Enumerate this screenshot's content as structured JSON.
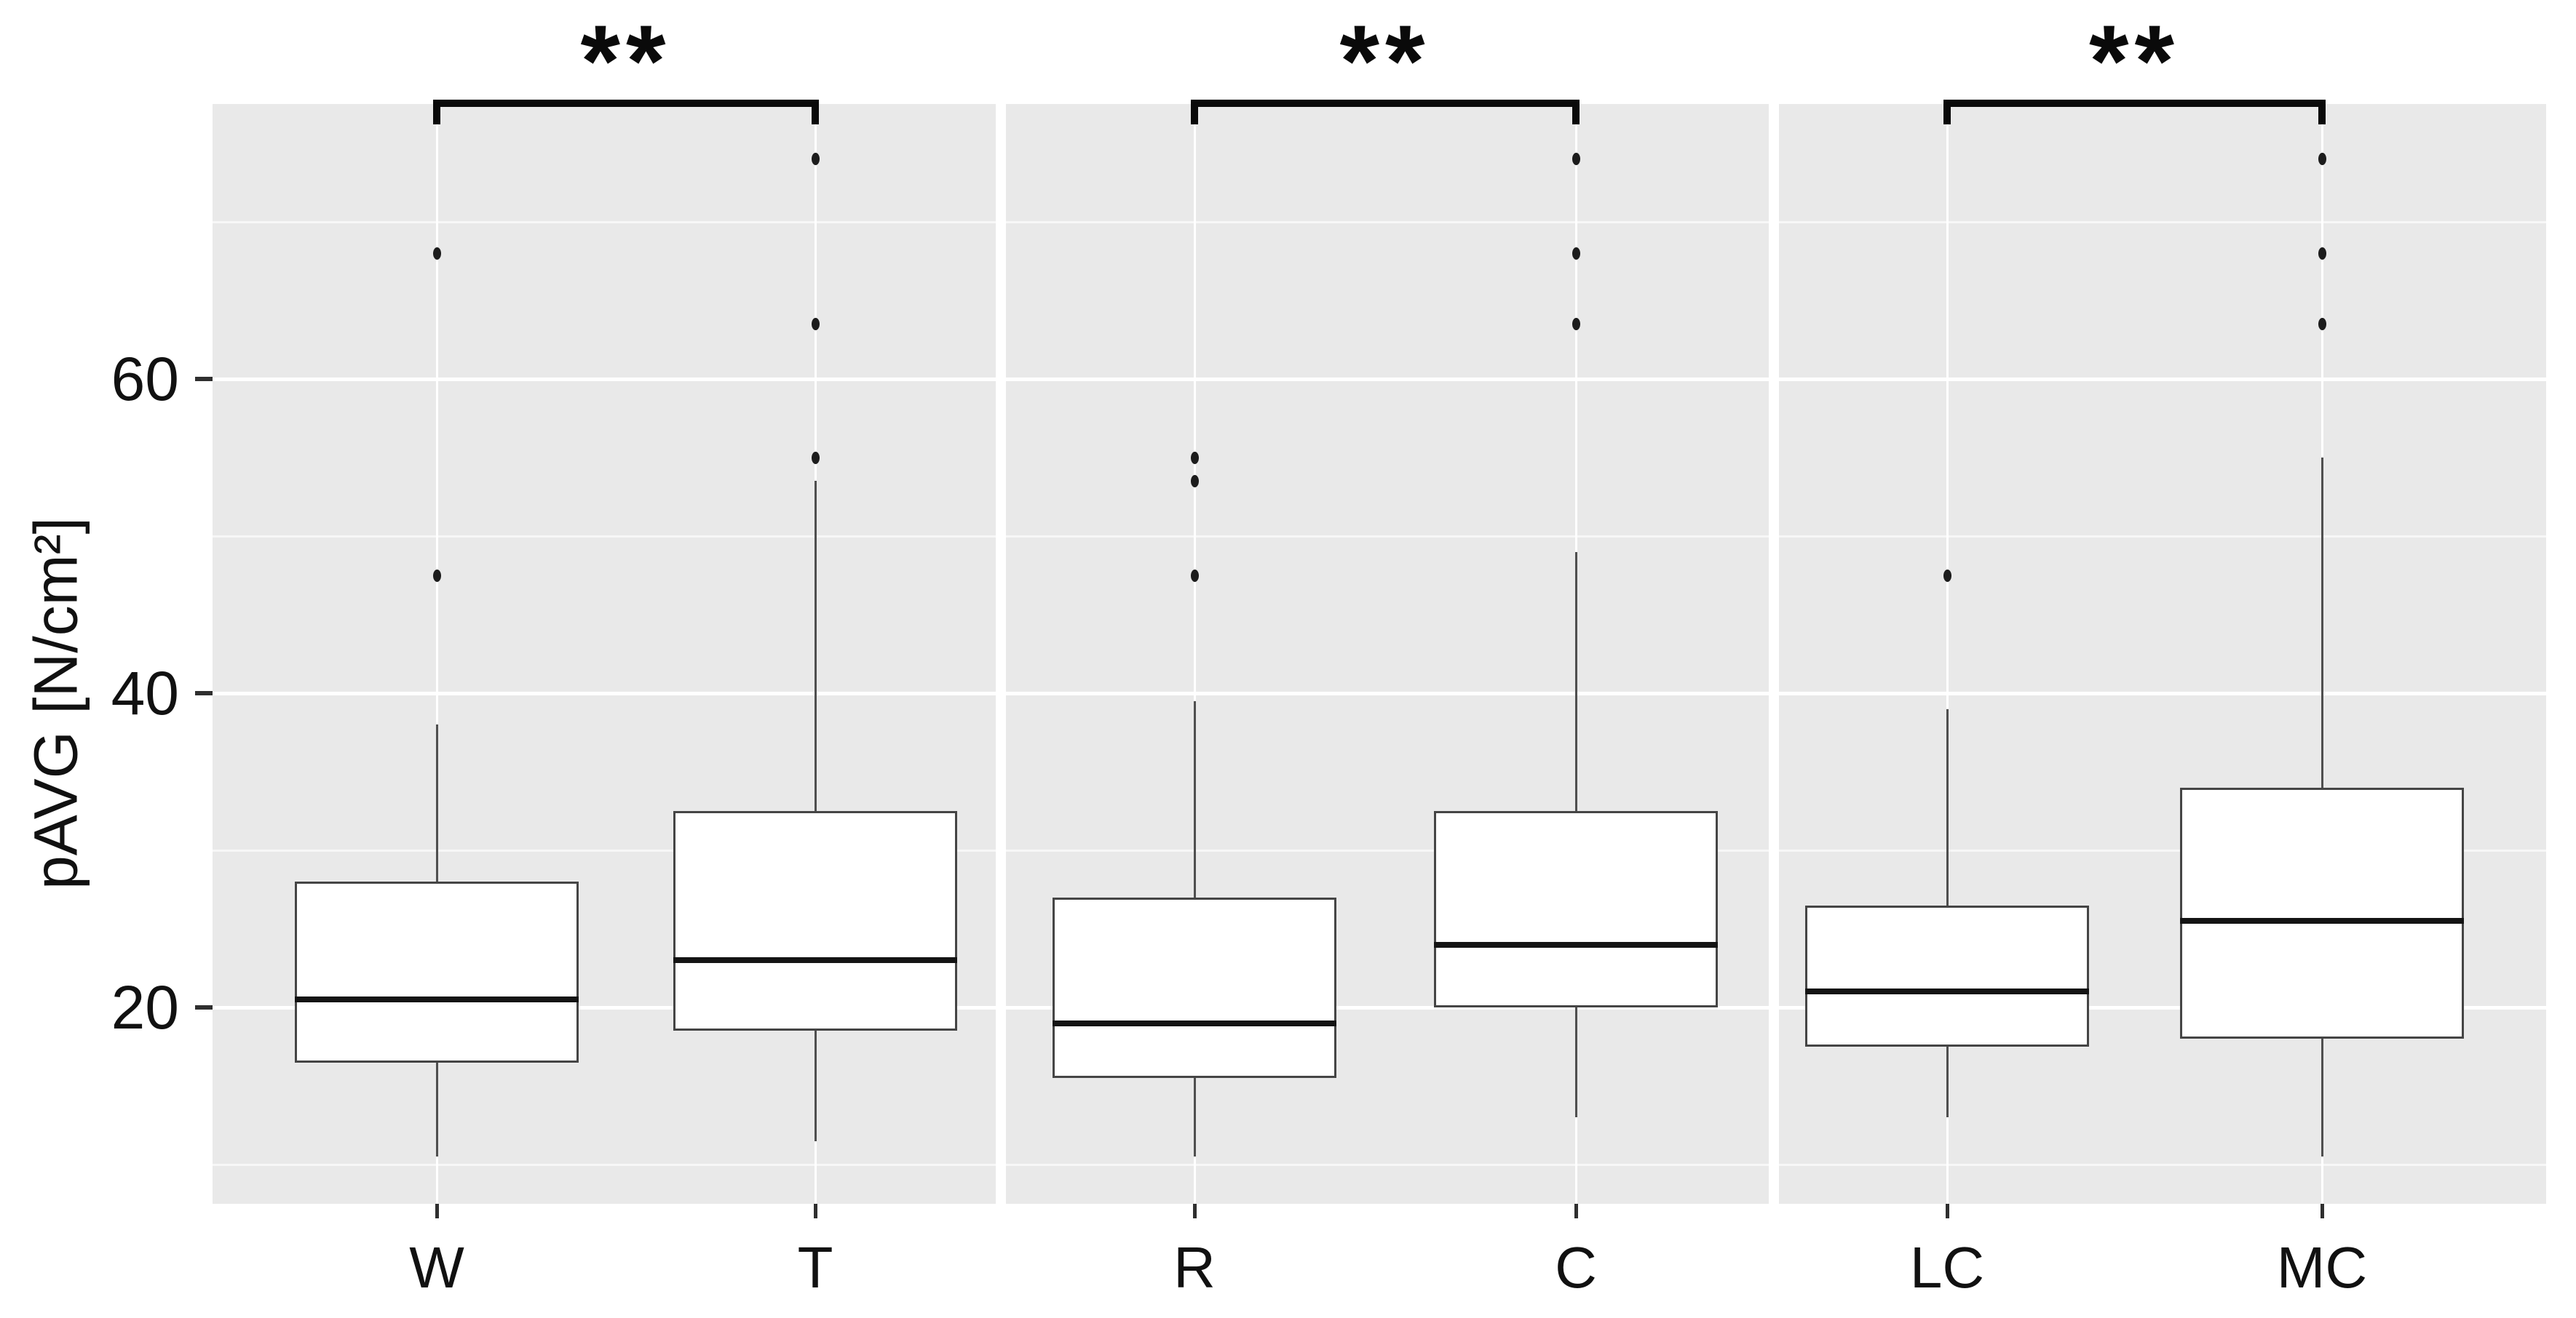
{
  "chart_data": {
    "type": "boxplot",
    "title": "",
    "xlabel": "",
    "ylabel": "pAVG [N/cm²]",
    "ylim": [
      7.5,
      77.5
    ],
    "yticks": [
      20,
      40,
      60
    ],
    "grid": {
      "major": [
        20,
        40,
        60
      ],
      "minor": [
        10,
        30,
        50,
        70
      ]
    },
    "legend": "none",
    "panels": [
      {
        "categories": [
          "W",
          "T"
        ],
        "significance": "**",
        "boxes": [
          {
            "category": "W",
            "whisker_low": 10.5,
            "q1": 16.5,
            "median": 20.5,
            "q3": 28,
            "whisker_high": 38,
            "outliers": [
              47.5,
              68
            ]
          },
          {
            "category": "T",
            "whisker_low": 11.5,
            "q1": 18.5,
            "median": 23,
            "q3": 32.5,
            "whisker_high": 53.5,
            "outliers": [
              55,
              63.5,
              74
            ]
          }
        ]
      },
      {
        "categories": [
          "R",
          "C"
        ],
        "significance": "**",
        "boxes": [
          {
            "category": "R",
            "whisker_low": 10.5,
            "q1": 15.5,
            "median": 19,
            "q3": 27,
            "whisker_high": 39.5,
            "outliers": [
              47.5,
              53.5,
              55
            ]
          },
          {
            "category": "C",
            "whisker_low": 13,
            "q1": 20,
            "median": 24,
            "q3": 32.5,
            "whisker_high": 49,
            "outliers": [
              63.5,
              68,
              74
            ]
          }
        ]
      },
      {
        "categories": [
          "LC",
          "MC"
        ],
        "significance": "**",
        "boxes": [
          {
            "category": "LC",
            "whisker_low": 13,
            "q1": 17.5,
            "median": 21,
            "q3": 26.5,
            "whisker_high": 39,
            "outliers": [
              47.5
            ]
          },
          {
            "category": "MC",
            "whisker_low": 10.5,
            "q1": 18,
            "median": 25.5,
            "q3": 34,
            "whisker_high": 55,
            "outliers": [
              63.5,
              68,
              74
            ]
          }
        ]
      }
    ]
  },
  "colors": {
    "background": "#ffffff",
    "panel_bg": "#e9e9e9",
    "grid_major": "#ffffff",
    "grid_minor": "#f7f7f7",
    "box_fill": "#ffffff",
    "box_border": "#454545",
    "median": "#141414",
    "whisker": "#4f4f4f",
    "outlier": "#1c1c1c",
    "bracket": "#0a0a0a",
    "text": "#111111"
  }
}
